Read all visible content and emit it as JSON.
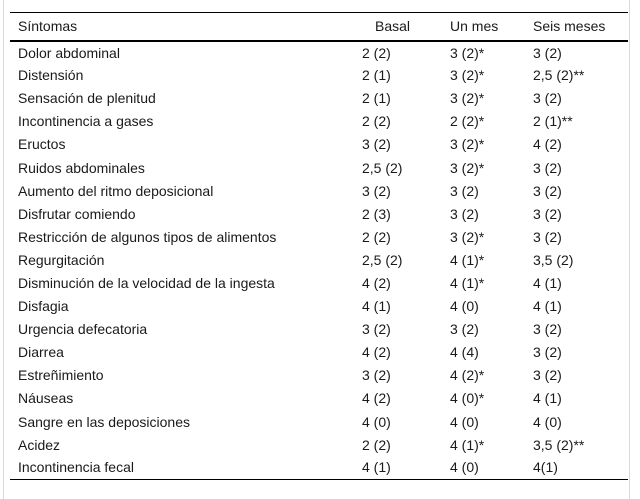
{
  "table": {
    "columns": [
      "Síntomas",
      "Basal",
      "Un mes",
      "Seis meses"
    ],
    "rows": [
      {
        "cells": [
          "Dolor abdominal",
          "2 (2)",
          "3 (2)*",
          "3 (2)"
        ]
      },
      {
        "cells": [
          "Distensión",
          "2 (1)",
          "3 (2)*",
          "2,5 (2)**"
        ]
      },
      {
        "cells": [
          "Sensación de plenitud",
          "2 (1)",
          "3 (2)*",
          "3 (2)"
        ]
      },
      {
        "cells": [
          "Incontinencia a gases",
          "2 (2)",
          "2 (2)*",
          "2 (1)**"
        ]
      },
      {
        "cells": [
          "Eructos",
          "3 (2)",
          "3 (2)*",
          "4 (2)"
        ]
      },
      {
        "cells": [
          "Ruidos abdominales",
          "2,5 (2)",
          "3 (2)*",
          "3 (2)"
        ]
      },
      {
        "cells": [
          "Aumento del ritmo deposicional",
          "3 (2)",
          "3 (2)",
          "3 (2)"
        ]
      },
      {
        "cells": [
          "Disfrutar comiendo",
          "2 (3)",
          "3 (2)",
          "3 (2)"
        ]
      },
      {
        "cells": [
          "Restricción de algunos tipos de alimentos",
          "2 (2)",
          "3 (2)*",
          "3 (2)"
        ]
      },
      {
        "cells": [
          "Regurgitación",
          "2,5 (2)",
          "4 (1)*",
          "3,5 (2)"
        ]
      },
      {
        "cells": [
          "Disminución de la velocidad de la ingesta",
          "4 (2)",
          "4 (1)*",
          "4 (1)"
        ]
      },
      {
        "cells": [
          "Disfagia",
          "4 (1)",
          "4 (0)",
          "4 (1)"
        ]
      },
      {
        "cells": [
          "Urgencia defecatoria",
          "3 (2)",
          "3 (2)",
          "3 (2)"
        ]
      },
      {
        "cells": [
          "Diarrea",
          "4 (2)",
          "4 (4)",
          "3 (2)"
        ]
      },
      {
        "cells": [
          "Estreñimiento",
          "3 (2)",
          "4 (2)*",
          "3 (2)"
        ]
      },
      {
        "cells": [
          "Náuseas",
          "4 (2)",
          "4 (0)*",
          "4 (1)"
        ]
      },
      {
        "cells": [
          "Sangre en las deposiciones",
          "4 (0)",
          "4 (0)",
          "4 (0)"
        ]
      },
      {
        "cells": [
          "Acidez",
          "2 (2)",
          "4 (1)*",
          "3,5 (2)**"
        ]
      },
      {
        "cells": [
          "Incontinencia fecal",
          "4 (1)",
          "4 (0)",
          "4(1)"
        ]
      }
    ]
  },
  "colors": {
    "text": "#1a1a1a",
    "rule": "#000000",
    "page_edge": "#d9d9d9",
    "background": "#ffffff"
  }
}
